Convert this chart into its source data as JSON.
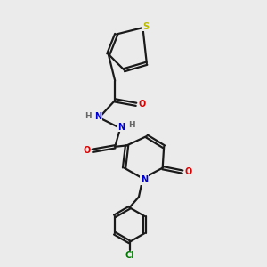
{
  "background_color": "#ebebeb",
  "bond_color": "#1a1a1a",
  "figsize": [
    3.0,
    3.0
  ],
  "dpi": 100,
  "colors": {
    "O": "#dd0000",
    "N": "#0000cc",
    "S": "#bbbb00",
    "Cl": "#007700",
    "H_label": "#666666",
    "bond": "#1a1a1a"
  },
  "lw": 1.6,
  "fs": 7.0,
  "doff": 0.055
}
